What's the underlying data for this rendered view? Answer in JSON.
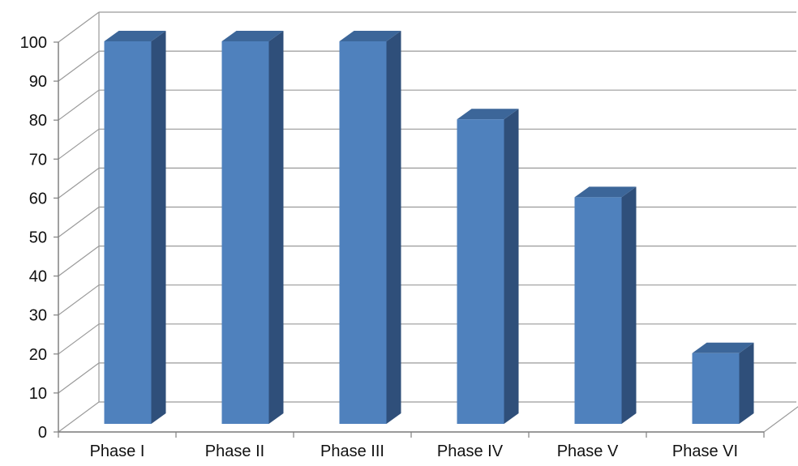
{
  "chart_data": {
    "type": "bar",
    "style": "3d-column",
    "categories": [
      "Phase I",
      "Phase II",
      "Phase III",
      "Phase IV",
      "Phase V",
      "Phase VI"
    ],
    "values": [
      100,
      100,
      100,
      80,
      60,
      20
    ],
    "title": "",
    "xlabel": "",
    "ylabel": "",
    "ylim": [
      0,
      100
    ],
    "yticks": [
      0,
      10,
      20,
      30,
      40,
      50,
      60,
      70,
      80,
      90,
      100
    ],
    "grid": true,
    "legend": "none",
    "colors": {
      "bar_front": "#4F81BD",
      "bar_side": "#2F4F7A",
      "bar_top": "#3C6699",
      "grid": "#9a9a9a",
      "axis": "#808080"
    }
  }
}
